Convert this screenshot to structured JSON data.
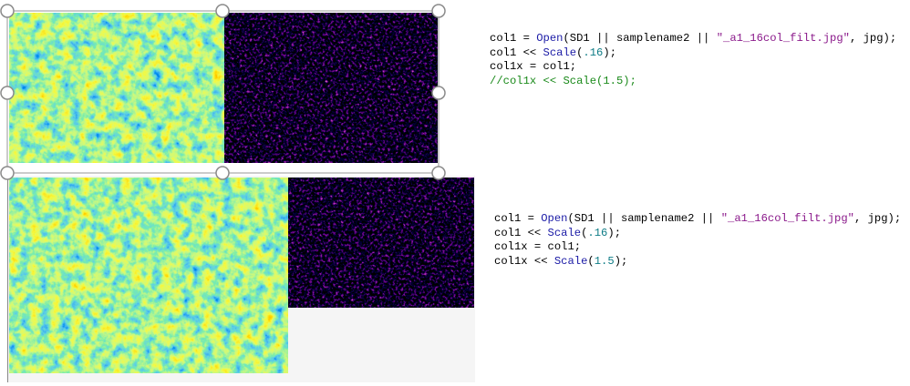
{
  "code_blocks": [
    {
      "lines": [
        {
          "tokens": [
            {
              "text": "col1 = ",
              "color": "#000000"
            },
            {
              "text": "Open",
              "color": "#1a1aa6"
            },
            {
              "text": "(SD1 || samplename2 || ",
              "color": "#000000"
            },
            {
              "text": "\"_a1_16col_filt.jpg\"",
              "color": "#8b1a8b"
            },
            {
              "text": ", jpg);",
              "color": "#000000"
            }
          ]
        },
        {
          "tokens": [
            {
              "text": "col1 << ",
              "color": "#000000"
            },
            {
              "text": "Scale",
              "color": "#1a1aa6"
            },
            {
              "text": "(",
              "color": "#000000"
            },
            {
              "text": ".16",
              "color": "#0e7c86"
            },
            {
              "text": ");",
              "color": "#000000"
            }
          ]
        },
        {
          "tokens": [
            {
              "text": "col1x = col1;",
              "color": "#000000"
            }
          ]
        },
        {
          "tokens": [
            {
              "text": "//col1x << Scale(1.5);",
              "color": "#1a8a1a"
            }
          ]
        }
      ]
    },
    {
      "lines": [
        {
          "tokens": [
            {
              "text": "col1 = ",
              "color": "#000000"
            },
            {
              "text": "Open",
              "color": "#1a1aa6"
            },
            {
              "text": "(SD1 || samplename2 || ",
              "color": "#000000"
            },
            {
              "text": "\"_a1_16col_filt.jpg\"",
              "color": "#8b1a8b"
            },
            {
              "text": ", jpg);",
              "color": "#000000"
            }
          ]
        },
        {
          "tokens": [
            {
              "text": "col1 << ",
              "color": "#000000"
            },
            {
              "text": "Scale",
              "color": "#1a1aa6"
            },
            {
              "text": "(",
              "color": "#000000"
            },
            {
              "text": ".16",
              "color": "#0e7c86"
            },
            {
              "text": ");",
              "color": "#000000"
            }
          ]
        },
        {
          "tokens": [
            {
              "text": "col1x = col1;",
              "color": "#000000"
            }
          ]
        },
        {
          "tokens": [
            {
              "text": "col1x << ",
              "color": "#000000"
            },
            {
              "text": "Scale",
              "color": "#1a1aa6"
            },
            {
              "text": "(",
              "color": "#000000"
            },
            {
              "text": "1.5",
              "color": "#0e7c86"
            },
            {
              "text": ");",
              "color": "#000000"
            }
          ]
        }
      ]
    }
  ]
}
